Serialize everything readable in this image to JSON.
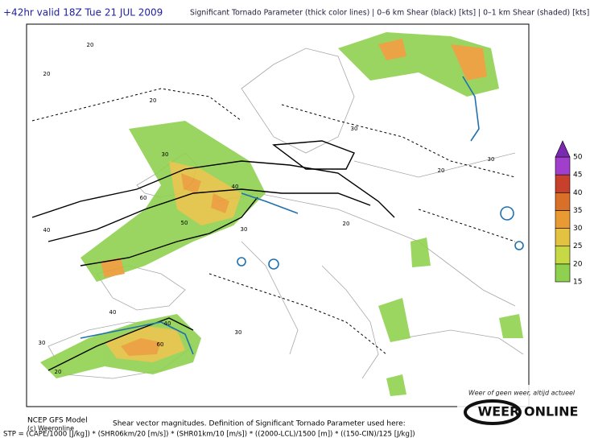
{
  "header": {
    "left": "+42hr valid 18Z Tue 21 JUL 2009",
    "right": "Significant Tornado Parameter (thick color lines) | 0–6 km Shear (black) [kts] | 0–1 km Shear (shaded) [kts]"
  },
  "colorbar": {
    "levels": [
      15,
      20,
      25,
      30,
      35,
      40,
      45,
      50
    ],
    "colors": [
      "#8fd14f",
      "#c6d843",
      "#e2c240",
      "#e99a33",
      "#d9702a",
      "#c7402c",
      "#a13fcc",
      "#7a2ab0"
    ]
  },
  "contour_labels": [
    "20",
    "20",
    "20",
    "30",
    "30",
    "40",
    "50",
    "60",
    "40",
    "30",
    "20",
    "40",
    "30",
    "20",
    "40",
    "60",
    "30",
    "20",
    "30"
  ],
  "footer": {
    "model": "NCEP GFS Model",
    "credit": "(c) Weeronline",
    "caption": "Shear vector magnitudes. Definition of Significant Tornado Parameter used here:",
    "formula": "STP = (CAPE/1000 [J/kg]) * (SHR06km/20 [m/s]) * (SHR01km/10 [m/s]) * ((2000-LCL)/1500 [m]) * ((150-CIN)/125 [J/kg])"
  },
  "logo": {
    "slogan": "Weer of geen weer, altijd actueel",
    "name": "WEER ONLINE"
  }
}
